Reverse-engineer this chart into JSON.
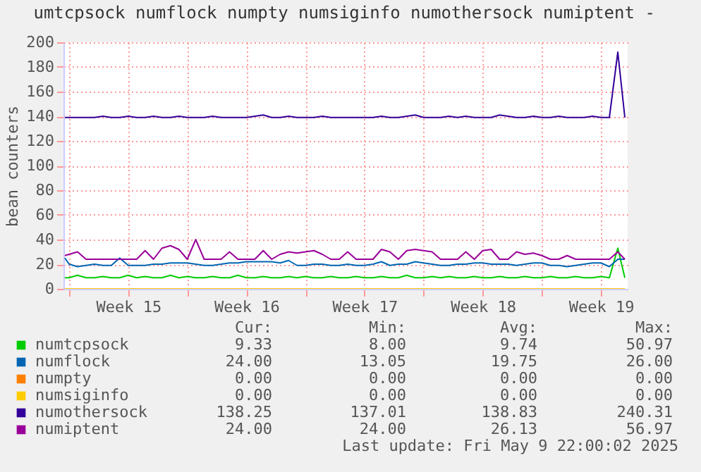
{
  "chart_data": {
    "type": "line",
    "title": "umtcpsock numflock numpty numsiginfo numothersock numiptent -",
    "ylabel": "bean counters",
    "x": [
      "2025-04-06T18:00",
      "2025-04-07T00:00",
      "2025-04-07T12:00",
      "2025-04-08T00:00",
      "2025-04-08T12:00",
      "2025-04-09T00:00",
      "2025-04-09T12:00",
      "2025-04-10T00:00",
      "2025-04-10T12:00",
      "2025-04-11T00:00",
      "2025-04-11T12:00",
      "2025-04-12T00:00",
      "2025-04-12T12:00",
      "2025-04-13T00:00",
      "2025-04-13T12:00",
      "2025-04-14T00:00",
      "2025-04-14T12:00",
      "2025-04-15T00:00",
      "2025-04-15T12:00",
      "2025-04-16T00:00",
      "2025-04-16T12:00",
      "2025-04-17T00:00",
      "2025-04-17T12:00",
      "2025-04-18T00:00",
      "2025-04-18T12:00",
      "2025-04-19T00:00",
      "2025-04-19T12:00",
      "2025-04-20T00:00",
      "2025-04-20T12:00",
      "2025-04-21T00:00",
      "2025-04-21T12:00",
      "2025-04-22T00:00",
      "2025-04-22T12:00",
      "2025-04-23T00:00",
      "2025-04-23T12:00",
      "2025-04-24T00:00",
      "2025-04-24T12:00",
      "2025-04-25T00:00",
      "2025-04-25T12:00",
      "2025-04-26T00:00",
      "2025-04-26T12:00",
      "2025-04-27T00:00",
      "2025-04-27T12:00",
      "2025-04-28T00:00",
      "2025-04-28T12:00",
      "2025-04-29T00:00",
      "2025-04-29T12:00",
      "2025-04-30T00:00",
      "2025-04-30T12:00",
      "2025-05-01T00:00",
      "2025-05-01T12:00",
      "2025-05-02T00:00",
      "2025-05-02T12:00",
      "2025-05-03T00:00",
      "2025-05-03T12:00",
      "2025-05-04T00:00",
      "2025-05-04T12:00",
      "2025-05-05T00:00",
      "2025-05-05T12:00",
      "2025-05-06T00:00",
      "2025-05-06T12:00",
      "2025-05-07T00:00",
      "2025-05-07T12:00",
      "2025-05-08T00:00",
      "2025-05-08T12:00",
      "2025-05-09T00:00",
      "2025-05-09T12:00",
      "2025-05-09T22:00"
    ],
    "series": [
      {
        "name": "numtcpsock",
        "color": "#00cc00",
        "values": [
          9,
          9,
          11,
          9,
          9,
          10,
          9,
          9,
          11,
          9,
          10,
          9,
          9,
          11,
          9,
          10,
          9,
          9,
          10,
          9,
          9,
          11,
          9,
          9,
          10,
          9,
          9,
          10,
          9,
          10,
          9,
          9,
          10,
          9,
          9,
          10,
          9,
          9,
          10,
          9,
          9,
          11,
          9,
          9,
          10,
          9,
          10,
          9,
          9,
          10,
          9,
          9,
          10,
          9,
          9,
          10,
          9,
          9,
          10,
          9,
          9,
          10,
          9,
          9,
          10,
          9,
          33,
          9
        ]
      },
      {
        "name": "numflock",
        "color": "#0066b3",
        "values": [
          25,
          20,
          18,
          19,
          20,
          19,
          19,
          25,
          19,
          19,
          19,
          20,
          20,
          21,
          21,
          21,
          20,
          19,
          19,
          20,
          21,
          21,
          22,
          22,
          22,
          22,
          21,
          23,
          19,
          19,
          20,
          20,
          19,
          19,
          20,
          19,
          19,
          20,
          22,
          19,
          20,
          20,
          22,
          21,
          20,
          19,
          19,
          20,
          20,
          21,
          21,
          20,
          20,
          20,
          19,
          20,
          21,
          21,
          19,
          19,
          18,
          19,
          20,
          21,
          21,
          18,
          24,
          24
        ]
      },
      {
        "name": "numpty",
        "color": "#ff8000",
        "values": [
          null,
          null,
          null,
          null,
          null,
          null,
          null,
          null,
          null,
          null,
          null,
          null,
          null,
          null,
          null,
          null,
          null,
          null,
          null,
          null,
          null,
          null,
          null,
          null,
          null,
          null,
          null,
          null,
          null,
          null,
          null,
          null,
          null,
          null,
          null,
          null,
          null,
          null,
          null,
          null,
          null,
          null,
          null,
          null,
          null,
          null,
          null,
          null,
          null,
          null,
          null,
          null,
          null,
          null,
          null,
          null,
          null,
          null,
          null,
          null,
          null,
          null,
          null,
          null,
          null,
          null,
          null,
          null
        ]
      },
      {
        "name": "numsiginfo",
        "color": "#ffcc00",
        "values": [
          0,
          0,
          0,
          0,
          0,
          0,
          0,
          0,
          0,
          0,
          0,
          0,
          0,
          0,
          0,
          0,
          0,
          0,
          0,
          0,
          0,
          0,
          0,
          0,
          0,
          0,
          0,
          0,
          0,
          0,
          0,
          0,
          0,
          0,
          0,
          0,
          0,
          0,
          0,
          0,
          0,
          0,
          0,
          0,
          0,
          0,
          0,
          0,
          0,
          0,
          0,
          0,
          0,
          0,
          0,
          0,
          0,
          0,
          0,
          0,
          0,
          0,
          0,
          0,
          0,
          0,
          0,
          0
        ]
      },
      {
        "name": "numothersock",
        "color": "#330099",
        "values": [
          139,
          139,
          139,
          139,
          139,
          140,
          139,
          139,
          140,
          139,
          139,
          140,
          139,
          139,
          140,
          139,
          139,
          139,
          140,
          139,
          139,
          139,
          139,
          140,
          141,
          139,
          139,
          140,
          139,
          139,
          139,
          140,
          139,
          139,
          139,
          139,
          139,
          139,
          140,
          139,
          139,
          140,
          141,
          139,
          139,
          139,
          140,
          139,
          140,
          139,
          139,
          139,
          141,
          140,
          139,
          139,
          140,
          139,
          139,
          140,
          139,
          139,
          139,
          140,
          139,
          139,
          192,
          139
        ]
      },
      {
        "name": "numiptent",
        "color": "#990099",
        "values": [
          27,
          28,
          30,
          24,
          24,
          24,
          24,
          24,
          24,
          24,
          31,
          24,
          33,
          35,
          32,
          24,
          40,
          24,
          24,
          24,
          30,
          24,
          24,
          24,
          31,
          24,
          28,
          30,
          29,
          30,
          31,
          28,
          24,
          24,
          30,
          24,
          24,
          24,
          32,
          30,
          24,
          31,
          32,
          31,
          30,
          24,
          24,
          24,
          30,
          24,
          31,
          32,
          24,
          24,
          30,
          28,
          29,
          27,
          24,
          24,
          27,
          24,
          24,
          24,
          24,
          24,
          30,
          24
        ]
      }
    ],
    "xlim": [
      "2025-04-06T16:00",
      "2025-05-10T02:00"
    ],
    "xticks": [
      {
        "value": "2025-04-07T00:00",
        "label": null
      },
      {
        "value": "2025-04-10T12:00",
        "label": "Week 15"
      },
      {
        "value": "2025-04-14T00:00",
        "label": null
      },
      {
        "value": "2025-04-17T12:00",
        "label": "Week 16"
      },
      {
        "value": "2025-04-21T00:00",
        "label": null
      },
      {
        "value": "2025-04-24T12:00",
        "label": "Week 17"
      },
      {
        "value": "2025-04-28T00:00",
        "label": null
      },
      {
        "value": "2025-05-01T12:00",
        "label": "Week 18"
      },
      {
        "value": "2025-05-05T00:00",
        "label": null
      },
      {
        "value": "2025-05-08T12:00",
        "label": "Week 19"
      }
    ],
    "ylim": [
      0,
      200
    ],
    "yticks": [
      0,
      20,
      40,
      60,
      80,
      100,
      120,
      140,
      160,
      180,
      200
    ],
    "grid": true,
    "legend": "bottom",
    "marker": "none",
    "line_style": "solid",
    "annotations": [
      "Cur:",
      "Min:",
      "Avg:",
      "Max:",
      "9.33",
      "8.00",
      "9.74",
      "50.97",
      "24.00",
      "13.05",
      "19.75",
      "26.00",
      "0.00",
      "0.00",
      "0.00",
      "0.00",
      "0.00",
      "0.00",
      "0.00",
      "0.00",
      "138.25",
      "137.01",
      "138.83",
      "240.31",
      "24.00",
      "24.00",
      "26.13",
      "56.97",
      "Last update: Fri May  9 22:00:02 2025"
    ]
  }
}
